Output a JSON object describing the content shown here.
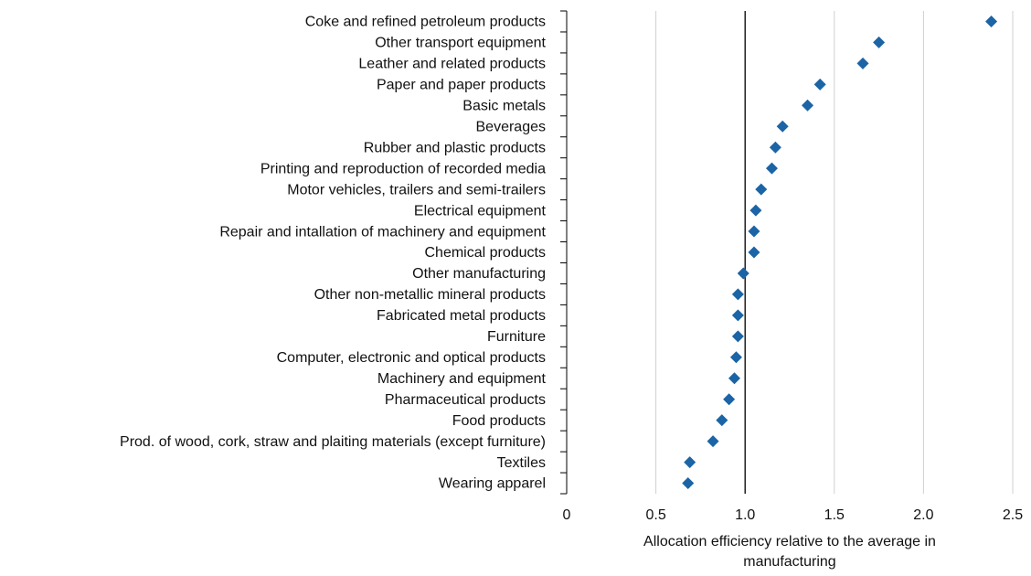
{
  "chart_data": {
    "type": "dot",
    "categories": [
      "Coke and refined petroleum products",
      "Other transport equipment",
      "Leather and related products",
      "Paper and paper products",
      "Basic metals",
      "Beverages",
      "Rubber and plastic products",
      "Printing and reproduction of recorded media",
      "Motor vehicles, trailers and semi-trailers",
      "Electrical equipment",
      "Repair and intallation of machinery and equipment",
      "Chemical products",
      "Other manufacturing",
      "Other non-metallic mineral products",
      "Fabricated metal products",
      "Furniture",
      "Computer, electronic and optical products",
      "Machinery and equipment",
      "Pharmaceutical products",
      "Food products",
      "Prod. of wood, cork, straw and plaiting materials (except furniture)",
      "Textiles",
      "Wearing apparel"
    ],
    "values": [
      2.38,
      1.75,
      1.66,
      1.42,
      1.35,
      1.21,
      1.17,
      1.15,
      1.09,
      1.06,
      1.05,
      1.05,
      0.99,
      0.96,
      0.96,
      0.96,
      0.95,
      0.94,
      0.91,
      0.87,
      0.82,
      0.69,
      0.68
    ],
    "color": "#1b64a6",
    "xlabel": "Allocation efficiency relative to the average in manufacturing",
    "xlim": [
      0,
      2.5
    ],
    "xticks": [
      0,
      0.5,
      {
        "value": 1,
        "label": "1.0"
      },
      1.5,
      {
        "value": 2,
        "label": "2.0"
      },
      2.5
    ],
    "reference_line": 1,
    "grid": true
  }
}
